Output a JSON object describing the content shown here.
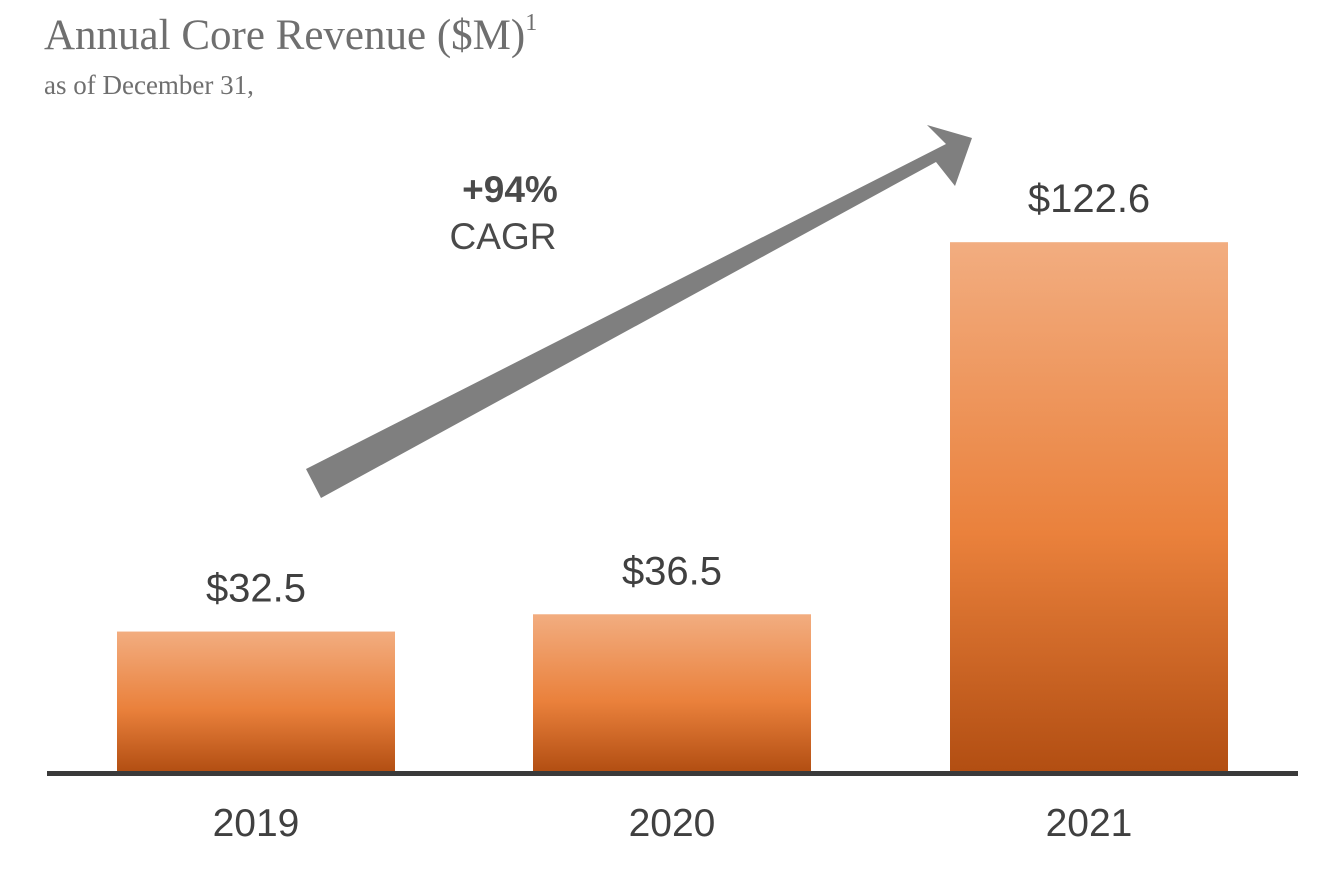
{
  "chart_data": {
    "type": "bar",
    "title": "Annual Core Revenue ($M)",
    "title_footnote": "1",
    "subtitle": "as of December 31,",
    "categories": [
      "2019",
      "2020",
      "2021"
    ],
    "values": [
      32.5,
      36.5,
      122.6
    ],
    "value_labels": [
      "$32.5",
      "$36.5",
      "$122.6"
    ],
    "ylim": [
      0,
      140
    ],
    "grid": false,
    "annotation": {
      "value": "+94%",
      "label": "CAGR"
    }
  },
  "colors": {
    "bar_top": "#f2ad80",
    "bar_mid": "#ea813c",
    "bar_bottom": "#b24e12",
    "axis": "#3a3a3a",
    "arrow": "#7f7f7f"
  }
}
